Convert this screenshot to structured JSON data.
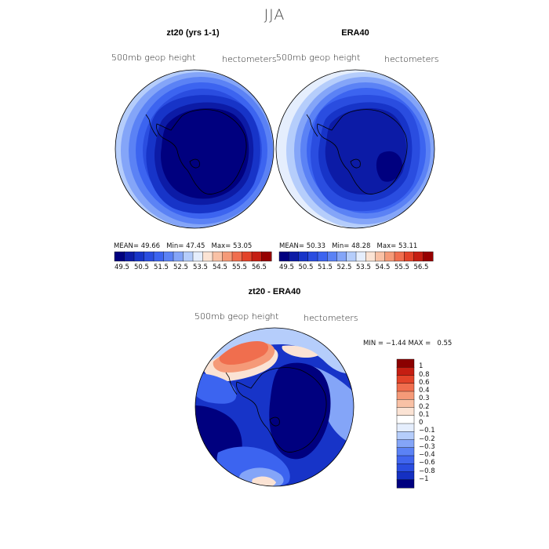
{
  "title": "JJA",
  "panels": [
    {
      "title": "zt20 (yrs 1-1)",
      "variable": "500mb geop height",
      "units": "hectometers",
      "stats": {
        "mean_label": "MEAN=",
        "mean": "49.66",
        "min_label": "Min=",
        "min": "47.45",
        "max_label": "Max=",
        "max": "53.05"
      }
    },
    {
      "title": "ERA40",
      "variable": "500mb geop height",
      "units": "hectometers",
      "stats": {
        "mean_label": "MEAN=",
        "mean": "50.33",
        "min_label": "Min=",
        "min": "48.28",
        "max_label": "Max=",
        "max": "53.11"
      }
    },
    {
      "title": "zt20 - ERA40",
      "variable": "500mb geop height",
      "units": "hectometers",
      "stats": {
        "min_label": "MIN =",
        "min": "−1.44",
        "max_label": "MAX =",
        "max": "0.55"
      }
    }
  ],
  "colorbar_top": {
    "colors": [
      "#00007f",
      "#0c1ba6",
      "#1734c8",
      "#2a4de0",
      "#3c64f0",
      "#5b82f5",
      "#84a5f8",
      "#b5cdfb",
      "#e5eefd",
      "#fbe3d4",
      "#f9c1a5",
      "#f59a78",
      "#f06e4e",
      "#e34329",
      "#c51e12",
      "#960000"
    ],
    "labels": [
      "49.5",
      "50.5",
      "51.5",
      "52.5",
      "53.5",
      "54.5",
      "55.5",
      "56.5"
    ]
  },
  "colorbar_diff": {
    "colors": [
      "#00007f",
      "#1530c2",
      "#2a4de0",
      "#4065ee",
      "#5b82f5",
      "#84a5f8",
      "#b5cdfb",
      "#e5eefd",
      "#ffffff",
      "#fbe3d4",
      "#f9c1a5",
      "#f59a78",
      "#f06e4e",
      "#e34329",
      "#c51e12",
      "#8b0000"
    ],
    "labels": [
      "1",
      "0.8",
      "0.6",
      "0.4",
      "0.3",
      "0.2",
      "0.1",
      "0",
      "−0.1",
      "−0.2",
      "−0.3",
      "−0.4",
      "−0.6",
      "−0.8",
      "−1"
    ]
  },
  "map_colors": {
    "deep": "#00007f",
    "dark": "#0c1ba6",
    "mid1": "#1734c8",
    "mid2": "#2a4de0",
    "mid3": "#3c64f0",
    "mid4": "#5b82f5",
    "light1": "#84a5f8",
    "light2": "#b5cdfb",
    "pale": "#e5eefd",
    "white": "#ffffff",
    "peach": "#fbe3d4",
    "salmon": "#f59a78",
    "orange": "#f06e4e",
    "red": "#e34329"
  }
}
